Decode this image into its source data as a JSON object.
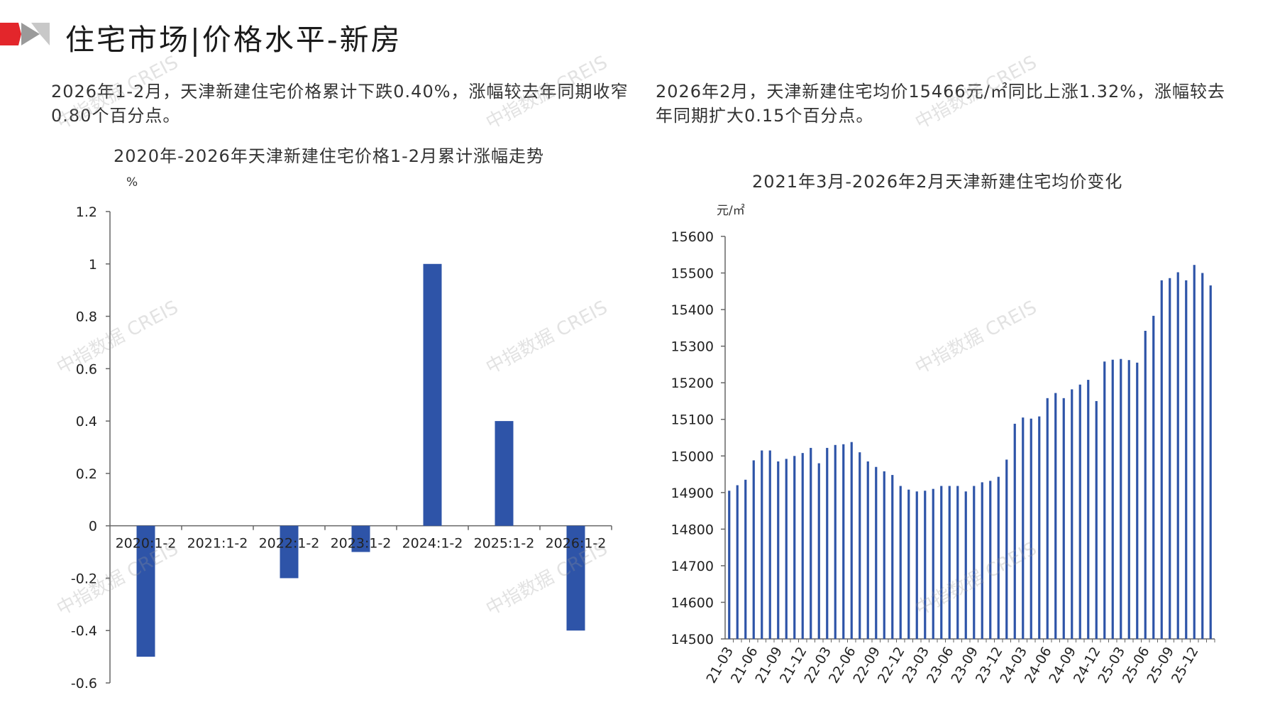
{
  "page_title": "住宅市场|价格水平-新房",
  "summary_left": "2026年1-2月，天津新建住宅价格累计下跌0.40%，涨幅较去年同期收窄0.80个百分点。",
  "summary_right": "2026年2月，天津新建住宅均价15466元/㎡同比上涨1.32%，涨幅较去年同期扩大0.15个百分点。",
  "watermark": "中指数据 CREIS",
  "colors": {
    "bar": "#2E54A8",
    "accent_red": "#E3262B",
    "logo_gray": "#B5B5B5"
  },
  "chart_data": [
    {
      "type": "bar",
      "title": "2020年-2026年天津新建住宅价格1-2月累计涨幅走势",
      "ylabel": "%",
      "categories": [
        "2020:1-2",
        "2021:1-2",
        "2022:1-2",
        "2023:1-2",
        "2024:1-2",
        "2025:1-2",
        "2026:1-2"
      ],
      "values": [
        -0.5,
        0,
        -0.2,
        -0.1,
        1.0,
        0.4,
        -0.4
      ],
      "ylim": [
        -0.6,
        1.2
      ],
      "yticks": [
        "1.2",
        "1",
        "0.8",
        "0.6",
        "0.4",
        "0.2",
        "0",
        "-0.2",
        "-0.4",
        "-0.6"
      ],
      "ytick_values": [
        1.2,
        1.0,
        0.8,
        0.6,
        0.4,
        0.2,
        0,
        -0.2,
        -0.4,
        -0.6
      ],
      "grid": false,
      "legend": "none"
    },
    {
      "type": "bar",
      "title": "2021年3月-2026年2月天津新建住宅均价变化",
      "ylabel": "元/㎡",
      "x": [
        "21-03",
        "21-04",
        "21-05",
        "21-06",
        "21-07",
        "21-08",
        "21-09",
        "21-10",
        "21-11",
        "21-12",
        "22-01",
        "22-02",
        "22-03",
        "22-04",
        "22-05",
        "22-06",
        "22-07",
        "22-08",
        "22-09",
        "22-10",
        "22-11",
        "22-12",
        "23-01",
        "23-02",
        "23-03",
        "23-04",
        "23-05",
        "23-06",
        "23-07",
        "23-08",
        "23-09",
        "23-10",
        "23-11",
        "23-12",
        "24-01",
        "24-02",
        "24-03",
        "24-04",
        "24-05",
        "24-06",
        "24-07",
        "24-08",
        "24-09",
        "24-10",
        "24-11",
        "24-12",
        "25-01",
        "25-02",
        "25-03",
        "25-04",
        "25-05",
        "25-06",
        "25-07",
        "25-08",
        "25-09",
        "25-10",
        "25-11",
        "25-12",
        "26-01",
        "26-02"
      ],
      "values": [
        14905,
        14920,
        14935,
        14988,
        15015,
        15015,
        14985,
        14992,
        15000,
        15008,
        15022,
        14980,
        15022,
        15030,
        15032,
        15038,
        15010,
        14985,
        14970,
        14958,
        14948,
        14918,
        14908,
        14903,
        14905,
        14910,
        14918,
        14918,
        14918,
        14903,
        14918,
        14928,
        14932,
        14943,
        14990,
        15088,
        15105,
        15102,
        15108,
        15158,
        15172,
        15158,
        15182,
        15195,
        15208,
        15150,
        15258,
        15263,
        15265,
        15262,
        15255,
        15342,
        15383,
        15480,
        15486,
        15502,
        15480,
        15522,
        15500,
        15466
      ],
      "xtick_labels": [
        "21-03",
        "21-06",
        "21-09",
        "21-12",
        "22-03",
        "22-06",
        "22-09",
        "22-12",
        "23-03",
        "23-06",
        "23-09",
        "23-12",
        "24-03",
        "24-06",
        "24-09",
        "24-12",
        "25-03",
        "25-06",
        "25-09",
        "25-12"
      ],
      "ylim": [
        14500,
        15600
      ],
      "yticks": [
        "15600",
        "15500",
        "15400",
        "15300",
        "15200",
        "15100",
        "15000",
        "14900",
        "14800",
        "14700",
        "14600",
        "14500"
      ],
      "ytick_values": [
        15600,
        15500,
        15400,
        15300,
        15200,
        15100,
        15000,
        14900,
        14800,
        14700,
        14600,
        14500
      ],
      "grid": false,
      "legend": "none"
    }
  ]
}
